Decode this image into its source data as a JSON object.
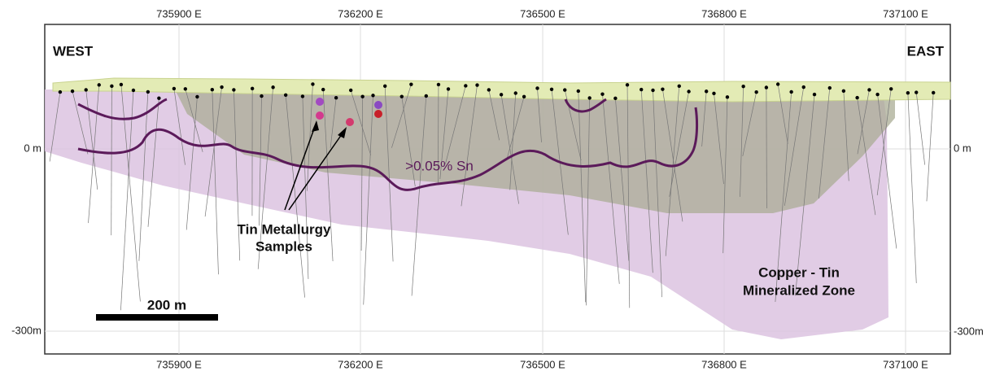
{
  "header": {
    "west": "WEST",
    "east": "EAST"
  },
  "axes": {
    "top_ticks": [
      "735900 E",
      "736200 E",
      "736500 E",
      "736800 E",
      "737100 E"
    ],
    "bottom_ticks": [
      "735900 E",
      "736200 E",
      "736500 E",
      "736800 E",
      "737100 E"
    ],
    "left_ticks": [
      "0 m",
      "-300m"
    ],
    "right_ticks": [
      "0 m",
      "-300m"
    ]
  },
  "annotations": {
    "samples": [
      "Tin Metallurgy",
      "Samples"
    ],
    "grade": ">0.05% Sn",
    "zone": [
      "Copper - Tin",
      "Mineralized Zone"
    ],
    "scale_bar": "200 m"
  }
}
